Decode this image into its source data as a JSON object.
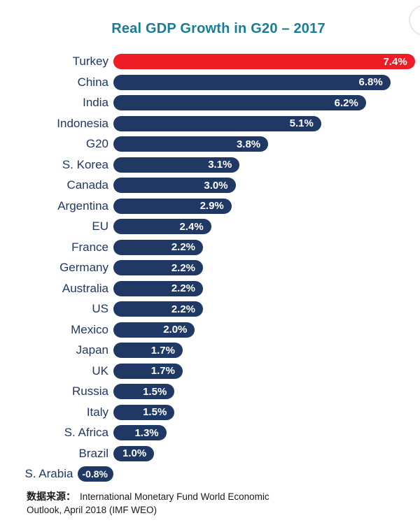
{
  "title": "Real GDP Growth in G20 – 2017",
  "colors": {
    "title": "#187E96",
    "label": "#1F3864",
    "value": "#FFFFFF",
    "source": "#1A1A1A",
    "background": "#FFFFFF",
    "artifact": "#F2E4E4"
  },
  "source": {
    "prefix": "数据来源：",
    "line1": "International Monetary Fund World Economic",
    "line2": "Outlook, April 2018 (IMF WEO)"
  },
  "chart_data": {
    "type": "bar",
    "orientation": "horizontal",
    "title": "Real GDP Growth in G20 – 2017",
    "xlabel": "",
    "ylabel": "",
    "unit": "%",
    "grid": false,
    "legend": false,
    "xlim": [
      -0.9,
      7.5
    ],
    "bar_color": "#1F3864",
    "highlight_color": "#EE1C25",
    "highlight_category": "Turkey",
    "categories": [
      "Turkey",
      "China",
      "India",
      "Indonesia",
      "G20",
      "S. Korea",
      "Canada",
      "Argentina",
      "EU",
      "France",
      "Germany",
      "Australia",
      "US",
      "Mexico",
      "Japan",
      "UK",
      "Russia",
      "Italy",
      "S. Africa",
      "Brazil",
      "S. Arabia"
    ],
    "values": [
      7.4,
      6.8,
      6.2,
      5.1,
      3.8,
      3.1,
      3.0,
      2.9,
      2.4,
      2.2,
      2.2,
      2.2,
      2.2,
      2.0,
      1.7,
      1.7,
      1.5,
      1.5,
      1.3,
      1.0,
      -0.8
    ],
    "labels": [
      "7.4%",
      "6.8%",
      "6.2%",
      "5.1%",
      "3.8%",
      "3.1%",
      "3.0%",
      "2.9%",
      "2.4%",
      "2.2%",
      "2.2%",
      "2.2%",
      "2.2%",
      "2.0%",
      "1.7%",
      "1.7%",
      "1.5%",
      "1.5%",
      "1.3%",
      "1.0%",
      "-0.8%"
    ]
  }
}
